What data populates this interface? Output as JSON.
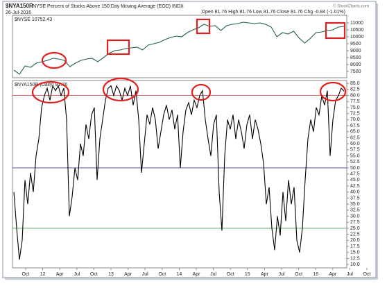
{
  "chart_data": [
    {
      "type": "line",
      "symbol": "$NYA150R",
      "title": "NYSE Percent of Stocks Above 150 Day Moving Average (EOD) INDX",
      "date": "26-Jul-2016",
      "quote": "Open 81.76 High 81.76 Low 81.76 Close 81.76 Chg -0.84 (-1.01%)",
      "credit": "© StockCharts.com",
      "legend": "$NYSE 10752.43",
      "color": "#1f5f4f",
      "values": [
        7600,
        7300,
        7900,
        7800,
        8100,
        8200,
        8300,
        8450,
        8400,
        8300,
        7850,
        8100,
        8300,
        8400,
        8450,
        8200,
        8500,
        8800,
        9000,
        9050,
        9150,
        9200,
        9250,
        9050,
        9400,
        9500,
        9600,
        9800,
        9950,
        10050,
        10000,
        10300,
        10500,
        10650,
        10900,
        10750,
        10800,
        10450,
        10800,
        10900,
        10950,
        11050,
        11000,
        10950,
        11000,
        10900,
        10700,
        10000,
        10300,
        10200,
        10400,
        9900,
        9550,
        9900,
        10300,
        10350,
        10450,
        10500,
        10700,
        10752.43
      ],
      "ylim": [
        7050,
        11550
      ],
      "yticks": [
        7500,
        8000,
        8500,
        9000,
        9500,
        10000,
        10500,
        11000
      ]
    },
    {
      "type": "line",
      "legend": "$NYA150R (Daily) 81.76",
      "color": "#000000",
      "values": [
        40,
        25,
        12,
        20,
        45,
        35,
        48,
        40,
        55,
        62,
        75,
        80,
        83,
        78,
        84,
        82,
        84,
        80,
        83,
        70,
        30,
        38,
        50,
        45,
        60,
        55,
        68,
        62,
        72,
        75,
        45,
        62,
        70,
        78,
        83,
        84,
        80,
        84,
        82,
        78,
        83,
        80,
        84,
        76,
        82,
        70,
        48,
        60,
        72,
        68,
        75,
        70,
        58,
        65,
        72,
        76,
        70,
        74,
        66,
        72,
        50,
        65,
        74,
        77,
        72,
        78,
        75,
        80,
        82,
        70,
        62,
        55,
        68,
        72,
        40,
        24,
        55,
        70,
        66,
        72,
        62,
        70,
        65,
        58,
        68,
        72,
        62,
        70,
        66,
        60,
        52,
        35,
        42,
        25,
        16,
        30,
        22,
        40,
        28,
        45,
        35,
        42,
        20,
        15,
        25,
        45,
        62,
        70,
        65,
        75,
        72,
        80,
        76,
        82,
        55,
        70,
        78,
        80,
        83,
        81.76
      ],
      "ylim": [
        8.6,
        86.2
      ],
      "ref_lines": [
        {
          "value": 80,
          "color": "#d9534f"
        },
        {
          "value": 50,
          "color": "#3b3b9a"
        },
        {
          "value": 25,
          "color": "#4a9a4a"
        }
      ],
      "yticks": [
        {
          "value": 10,
          "label": "10.0"
        },
        {
          "value": 12.5,
          "label": "12.5"
        },
        {
          "value": 15,
          "label": "15.0"
        },
        {
          "value": 17.5,
          "label": "17.5"
        },
        {
          "value": 20,
          "label": "20.0"
        },
        {
          "value": 22.5,
          "label": "22.5"
        },
        {
          "value": 25,
          "label": "25.0"
        },
        {
          "value": 27.5,
          "label": "27.5"
        },
        {
          "value": 30,
          "label": "30.0"
        },
        {
          "value": 32.5,
          "label": "32.5"
        },
        {
          "value": 35,
          "label": "35.0"
        },
        {
          "value": 37.5,
          "label": "37.5"
        },
        {
          "value": 40,
          "label": "40.0"
        },
        {
          "value": 42.5,
          "label": "42.5"
        },
        {
          "value": 45,
          "label": "45.0"
        },
        {
          "value": 47.5,
          "label": "47.5"
        },
        {
          "value": 50,
          "label": "50.0"
        },
        {
          "value": 52.5,
          "label": "52.5"
        },
        {
          "value": 55,
          "label": "55.0"
        },
        {
          "value": 57.5,
          "label": "57.5"
        },
        {
          "value": 60,
          "label": "60.0"
        },
        {
          "value": 62.5,
          "label": "62.5"
        },
        {
          "value": 65,
          "label": "65.0"
        },
        {
          "value": 67.5,
          "label": "67.5"
        },
        {
          "value": 70,
          "label": "70.0"
        },
        {
          "value": 72.5,
          "label": "72.5"
        },
        {
          "value": 75,
          "label": "75.0"
        },
        {
          "value": 77.5,
          "label": "77.5"
        },
        {
          "value": 80,
          "label": "80.0"
        },
        {
          "value": 82.5,
          "label": "82.5"
        },
        {
          "value": 85,
          "label": "85.0"
        }
      ],
      "x_labels": [
        "Oct",
        "12",
        "Apr",
        "Jul",
        "Oct",
        "13",
        "Apr",
        "Jul",
        "Oct",
        "14",
        "Apr",
        "Jul",
        "Oct",
        "15",
        "Apr",
        "Jul",
        "Oct",
        "16",
        "Apr",
        "Jul",
        "Oct"
      ]
    }
  ]
}
